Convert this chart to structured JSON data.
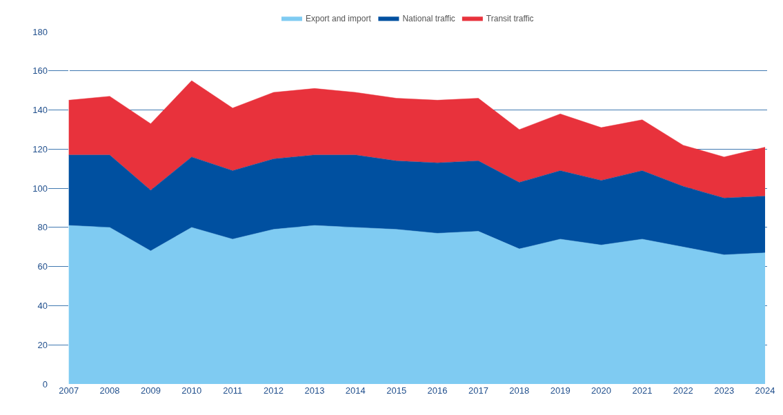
{
  "chart_data": {
    "type": "area",
    "stacked": true,
    "legend": "top",
    "grid": "y",
    "categories": [
      "2007",
      "2008",
      "2009",
      "2010",
      "2011",
      "2012",
      "2013",
      "2014",
      "2015",
      "2016",
      "2017",
      "2018",
      "2019",
      "2020",
      "2021",
      "2022",
      "2023",
      "2024"
    ],
    "ylim": [
      0,
      180
    ],
    "yticks": [
      0,
      20,
      40,
      60,
      80,
      100,
      120,
      140,
      160,
      180
    ],
    "series": [
      {
        "name": "Export and import",
        "color": "#7fcbf2",
        "values": [
          81,
          80,
          68,
          80,
          74,
          79,
          81,
          80,
          79,
          77,
          78,
          69,
          74,
          71,
          74,
          70,
          66,
          67
        ]
      },
      {
        "name": "National traffic",
        "color": "#0050a0",
        "values": [
          36,
          37,
          31,
          36,
          35,
          36,
          36,
          37,
          35,
          36,
          36,
          34,
          35,
          33,
          35,
          31,
          29,
          29
        ]
      },
      {
        "name": "Transit traffic",
        "color": "#e8323c",
        "values": [
          28,
          30,
          34,
          39,
          32,
          34,
          34,
          32,
          32,
          32,
          32,
          27,
          29,
          27,
          26,
          21,
          21,
          25
        ]
      }
    ]
  }
}
